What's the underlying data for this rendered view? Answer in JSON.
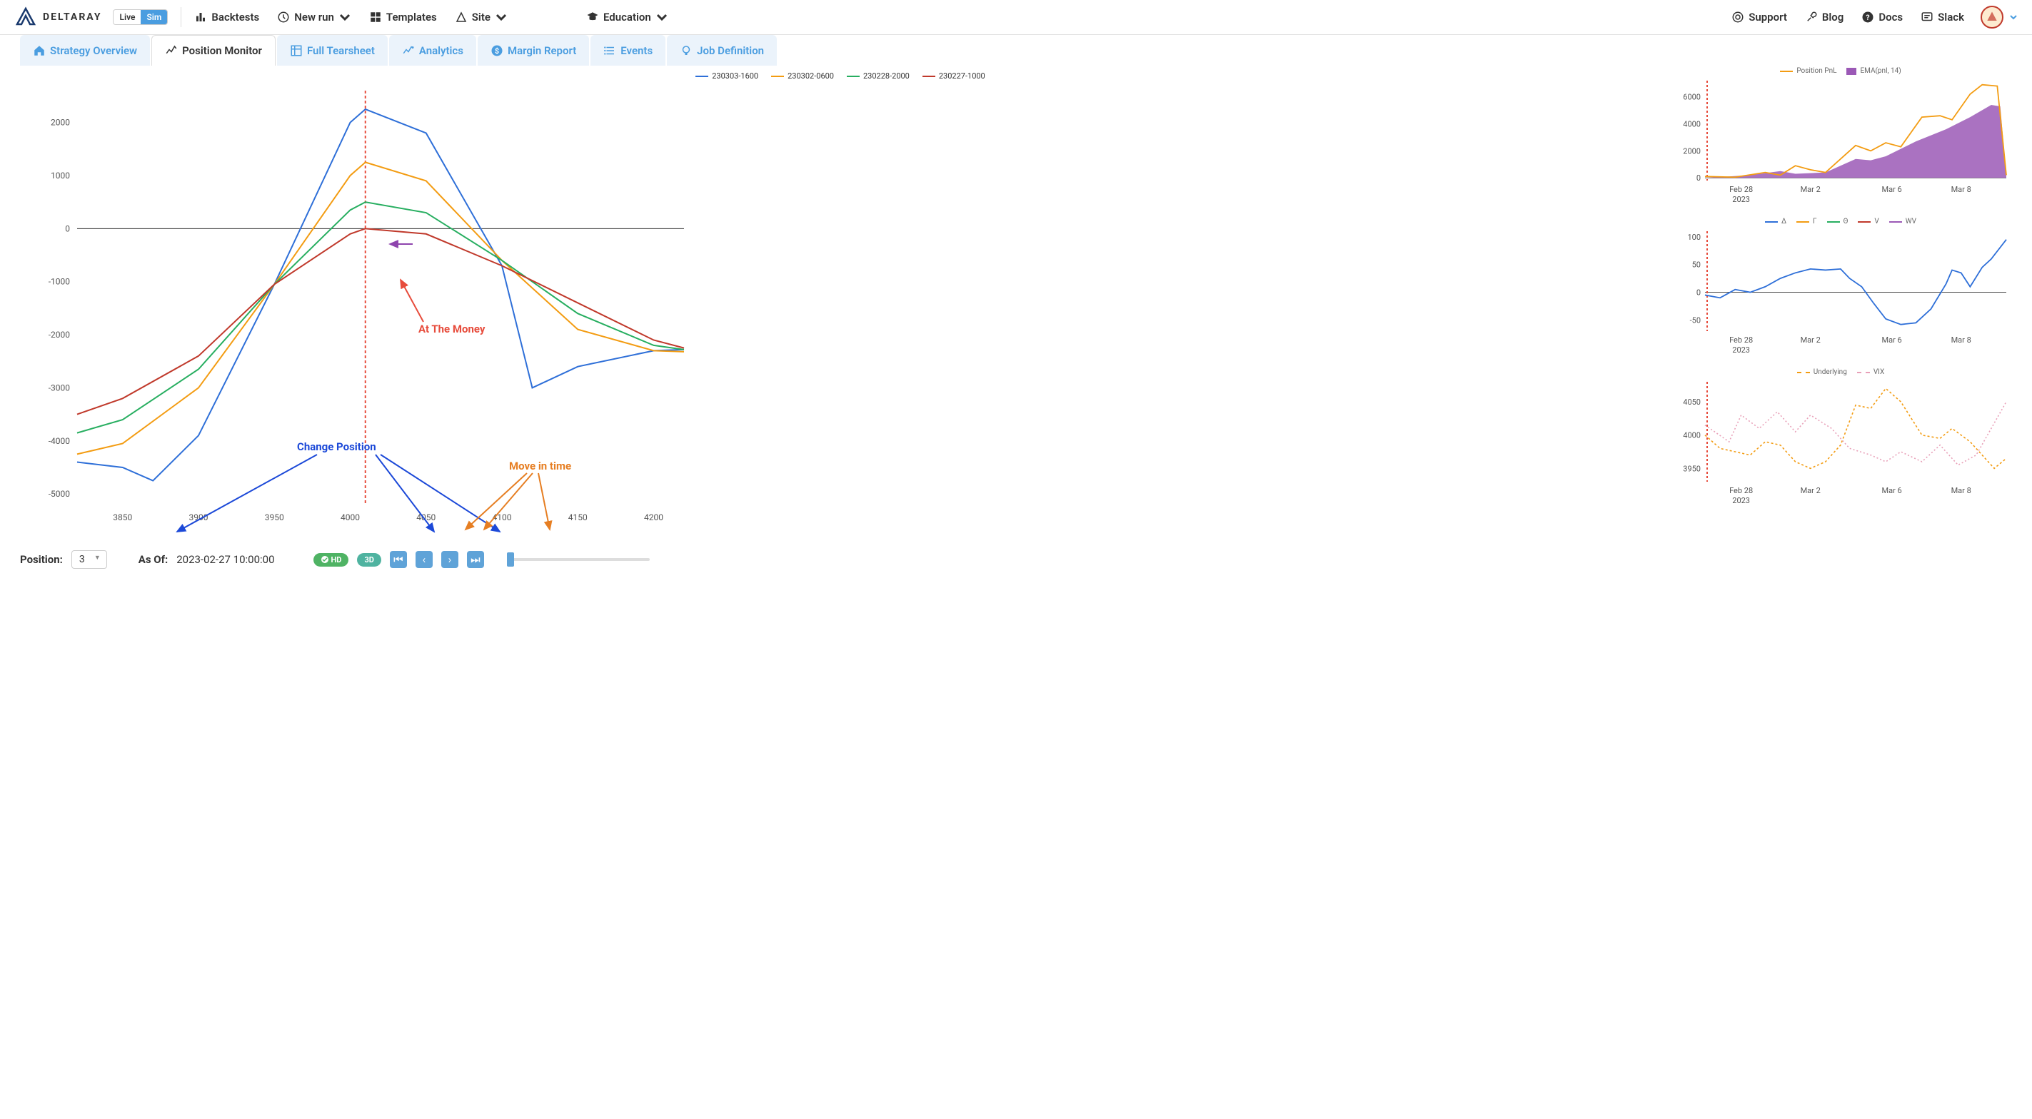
{
  "header": {
    "brand": "DELTARAY",
    "mode_live": "Live",
    "mode_sim": "Sim",
    "nav": {
      "backtests": "Backtests",
      "newrun": "New run",
      "templates": "Templates",
      "site": "Site",
      "education": "Education",
      "support": "Support",
      "blog": "Blog",
      "docs": "Docs",
      "slack": "Slack"
    }
  },
  "tabs": {
    "overview": "Strategy Overview",
    "monitor": "Position Monitor",
    "tearsheet": "Full Tearsheet",
    "analytics": "Analytics",
    "margin": "Margin Report",
    "events": "Events",
    "jobdef": "Job Definition"
  },
  "controls": {
    "position_label": "Position:",
    "position_value": "3",
    "asof_label": "As Of:",
    "asof_value": "2023-02-27 10:00:00",
    "hd": "HD",
    "3d": "3D"
  },
  "annotations": {
    "atm": "At The Money",
    "change_pos": "Change Position",
    "move_time": "Move in time"
  },
  "main_chart": {
    "type": "line",
    "series": [
      {
        "name": "230303-1600",
        "color": "#2e6fd8"
      },
      {
        "name": "230302-0600",
        "color": "#f39c12"
      },
      {
        "name": "230228-2000",
        "color": "#27ae60"
      },
      {
        "name": "230227-1000",
        "color": "#c0392b"
      }
    ],
    "x_ticks": [
      3850,
      3900,
      3950,
      4000,
      4050,
      4100,
      4150,
      4200
    ],
    "y_ticks": [
      -5000,
      -4000,
      -3000,
      -2000,
      -1000,
      0,
      1000,
      2000
    ],
    "xlim": [
      3820,
      4220
    ],
    "ylim": [
      -5200,
      2600
    ],
    "atm_x": 4010,
    "curves": {
      "230303-1600": [
        [
          3820,
          -4400
        ],
        [
          3850,
          -4500
        ],
        [
          3870,
          -4750
        ],
        [
          3900,
          -3900
        ],
        [
          3950,
          -1050
        ],
        [
          4000,
          2000
        ],
        [
          4010,
          2250
        ],
        [
          4050,
          1800
        ],
        [
          4100,
          -700
        ],
        [
          4120,
          -3000
        ],
        [
          4150,
          -2600
        ],
        [
          4200,
          -2300
        ],
        [
          4220,
          -2280
        ]
      ],
      "230302-0600": [
        [
          3820,
          -4250
        ],
        [
          3850,
          -4050
        ],
        [
          3900,
          -3000
        ],
        [
          3950,
          -1050
        ],
        [
          4000,
          1000
        ],
        [
          4010,
          1250
        ],
        [
          4050,
          900
        ],
        [
          4100,
          -600
        ],
        [
          4150,
          -1900
        ],
        [
          4200,
          -2300
        ],
        [
          4220,
          -2320
        ]
      ],
      "230228-2000": [
        [
          3820,
          -3850
        ],
        [
          3850,
          -3600
        ],
        [
          3900,
          -2650
        ],
        [
          3950,
          -1050
        ],
        [
          4000,
          350
        ],
        [
          4010,
          500
        ],
        [
          4050,
          300
        ],
        [
          4100,
          -600
        ],
        [
          4150,
          -1600
        ],
        [
          4200,
          -2200
        ],
        [
          4220,
          -2280
        ]
      ],
      "230227-1000": [
        [
          3820,
          -3500
        ],
        [
          3850,
          -3200
        ],
        [
          3900,
          -2400
        ],
        [
          3950,
          -1050
        ],
        [
          4000,
          -100
        ],
        [
          4010,
          0
        ],
        [
          4050,
          -100
        ],
        [
          4100,
          -700
        ],
        [
          4150,
          -1400
        ],
        [
          4200,
          -2100
        ],
        [
          4220,
          -2250
        ]
      ]
    }
  },
  "pnl_chart": {
    "series": [
      {
        "name": "Position PnL",
        "color": "#f39c12",
        "type": "line"
      },
      {
        "name": "EMA(pnl, 14)",
        "color": "#9b59b6",
        "type": "area"
      }
    ],
    "y_ticks": [
      0,
      2000,
      4000,
      6000
    ],
    "x_tick_labels": [
      "Feb 28\n2023",
      "Mar 2",
      "Mar 6",
      "Mar 8"
    ],
    "x_tick_dates": [
      "Feb 28",
      "Mar 2",
      "Mar 6",
      "Mar 8"
    ],
    "x_tick_year": "2023",
    "line": [
      [
        0,
        100
      ],
      [
        10,
        50
      ],
      [
        20,
        400
      ],
      [
        25,
        200
      ],
      [
        30,
        900
      ],
      [
        35,
        600
      ],
      [
        40,
        400
      ],
      [
        50,
        2400
      ],
      [
        55,
        2000
      ],
      [
        60,
        2600
      ],
      [
        65,
        2300
      ],
      [
        72,
        4500
      ],
      [
        78,
        4600
      ],
      [
        82,
        4300
      ],
      [
        88,
        6200
      ],
      [
        92,
        6900
      ],
      [
        97,
        6800
      ],
      [
        100,
        200
      ]
    ],
    "area": [
      [
        0,
        0
      ],
      [
        15,
        200
      ],
      [
        25,
        500
      ],
      [
        30,
        300
      ],
      [
        40,
        400
      ],
      [
        50,
        1400
      ],
      [
        55,
        1300
      ],
      [
        60,
        1600
      ],
      [
        70,
        2700
      ],
      [
        80,
        3600
      ],
      [
        88,
        4500
      ],
      [
        95,
        5400
      ],
      [
        98,
        5300
      ],
      [
        100,
        200
      ]
    ]
  },
  "greeks_chart": {
    "series": [
      {
        "name": "Δ",
        "color": "#2e6fd8"
      },
      {
        "name": "Γ",
        "color": "#f39c12"
      },
      {
        "name": "Θ",
        "color": "#27ae60"
      },
      {
        "name": "V",
        "color": "#c0392b"
      },
      {
        "name": "WV",
        "color": "#9b59b6"
      }
    ],
    "y_ticks": [
      -50,
      0,
      50,
      100
    ],
    "x_tick_dates": [
      "Feb 28",
      "Mar 2",
      "Mar 6",
      "Mar 8"
    ],
    "x_tick_year": "2023",
    "delta": [
      [
        0,
        -5
      ],
      [
        5,
        -10
      ],
      [
        10,
        5
      ],
      [
        15,
        0
      ],
      [
        20,
        10
      ],
      [
        25,
        25
      ],
      [
        30,
        35
      ],
      [
        35,
        42
      ],
      [
        40,
        40
      ],
      [
        45,
        42
      ],
      [
        48,
        25
      ],
      [
        52,
        10
      ],
      [
        56,
        -20
      ],
      [
        60,
        -48
      ],
      [
        65,
        -58
      ],
      [
        70,
        -55
      ],
      [
        75,
        -30
      ],
      [
        80,
        15
      ],
      [
        82,
        40
      ],
      [
        85,
        35
      ],
      [
        88,
        10
      ],
      [
        92,
        45
      ],
      [
        95,
        60
      ],
      [
        100,
        95
      ]
    ]
  },
  "underlying_chart": {
    "series": [
      {
        "name": "Underlying",
        "color": "#f39c12",
        "dash": true
      },
      {
        "name": "VIX",
        "color": "#e8a0b8",
        "dash": true
      }
    ],
    "y_ticks": [
      3950,
      4000,
      4050
    ],
    "x_tick_dates": [
      "Feb 28",
      "Mar 2",
      "Mar 6",
      "Mar 8"
    ],
    "x_tick_year": "2023",
    "underlying": [
      [
        0,
        4000
      ],
      [
        5,
        3980
      ],
      [
        10,
        3975
      ],
      [
        15,
        3970
      ],
      [
        20,
        3990
      ],
      [
        25,
        3985
      ],
      [
        30,
        3960
      ],
      [
        35,
        3950
      ],
      [
        40,
        3960
      ],
      [
        45,
        3985
      ],
      [
        50,
        4045
      ],
      [
        55,
        4040
      ],
      [
        60,
        4070
      ],
      [
        65,
        4050
      ],
      [
        72,
        4000
      ],
      [
        78,
        3995
      ],
      [
        82,
        4010
      ],
      [
        88,
        3990
      ],
      [
        92,
        3970
      ],
      [
        96,
        3950
      ],
      [
        100,
        3965
      ]
    ],
    "vix": [
      [
        0,
        4015
      ],
      [
        8,
        3990
      ],
      [
        12,
        4030
      ],
      [
        18,
        4010
      ],
      [
        24,
        4035
      ],
      [
        30,
        4005
      ],
      [
        35,
        4030
      ],
      [
        42,
        4010
      ],
      [
        48,
        3980
      ],
      [
        55,
        3970
      ],
      [
        60,
        3960
      ],
      [
        65,
        3975
      ],
      [
        72,
        3960
      ],
      [
        78,
        3985
      ],
      [
        84,
        3955
      ],
      [
        90,
        3970
      ],
      [
        95,
        4010
      ],
      [
        100,
        4050
      ]
    ]
  }
}
